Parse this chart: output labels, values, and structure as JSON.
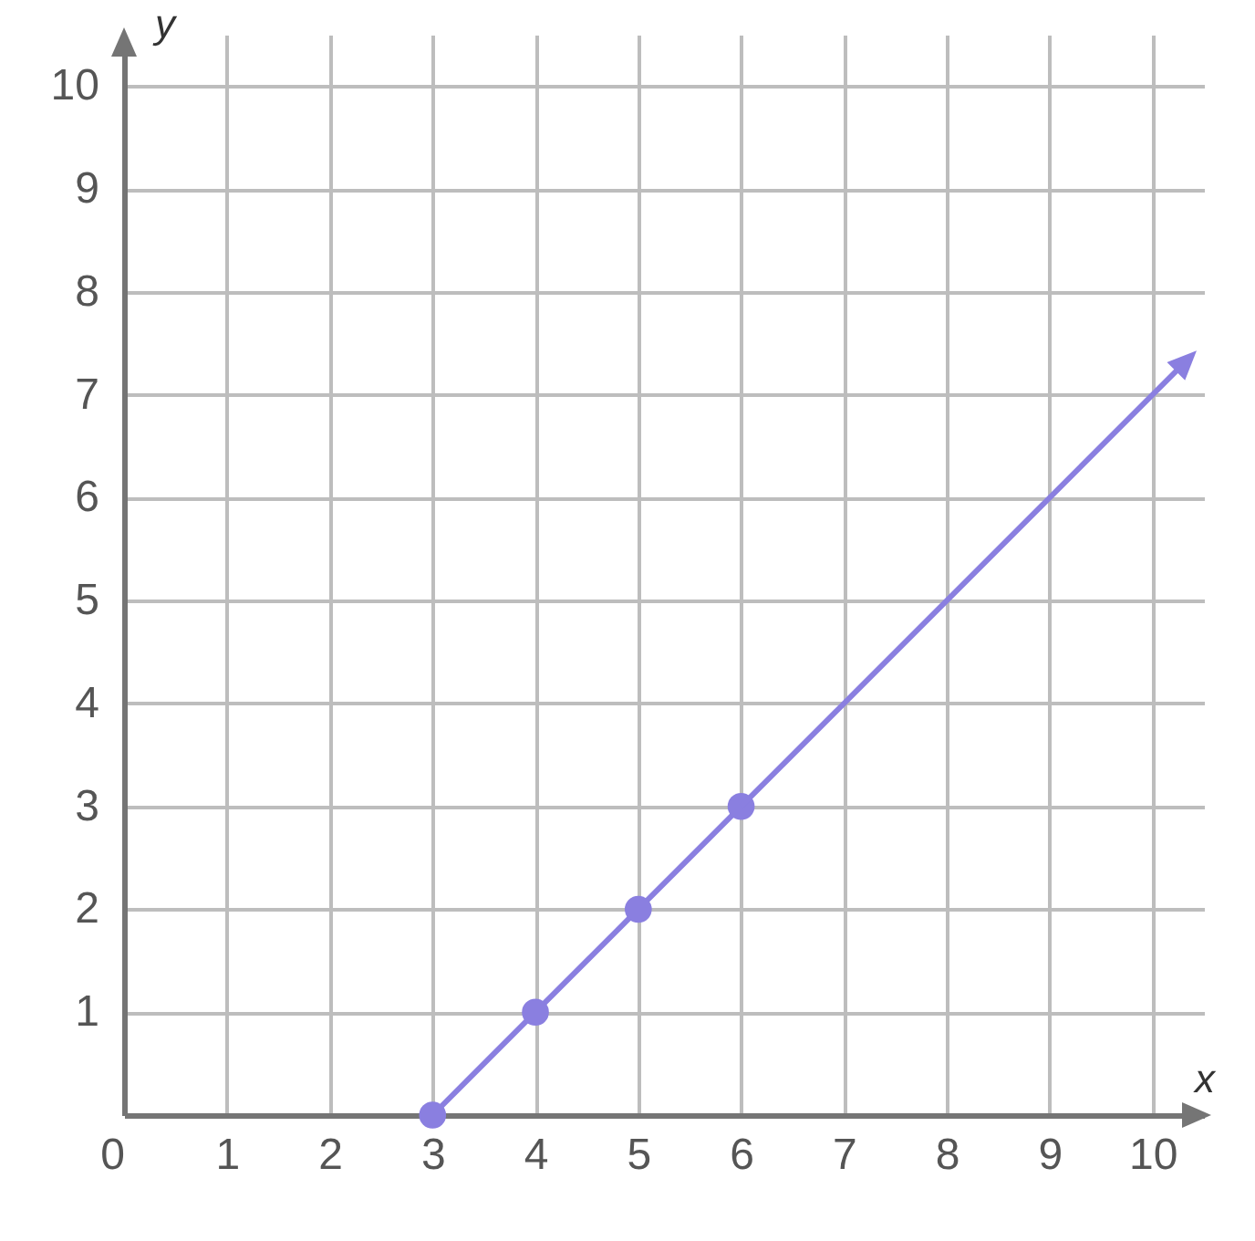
{
  "chart_data": {
    "type": "line",
    "xlabel": "x",
    "ylabel": "y",
    "xlim": [
      0,
      10.5
    ],
    "ylim": [
      0,
      10.5
    ],
    "xticks": [
      0,
      1,
      2,
      3,
      4,
      5,
      6,
      7,
      8,
      9,
      10
    ],
    "yticks": [
      1,
      2,
      3,
      4,
      5,
      6,
      7,
      8,
      9,
      10
    ],
    "grid": true,
    "marker": "circle",
    "series": [
      {
        "color": "#8a7fe0",
        "x": [
          3,
          4,
          5,
          6
        ],
        "values": [
          0,
          1,
          2,
          3
        ]
      }
    ]
  }
}
